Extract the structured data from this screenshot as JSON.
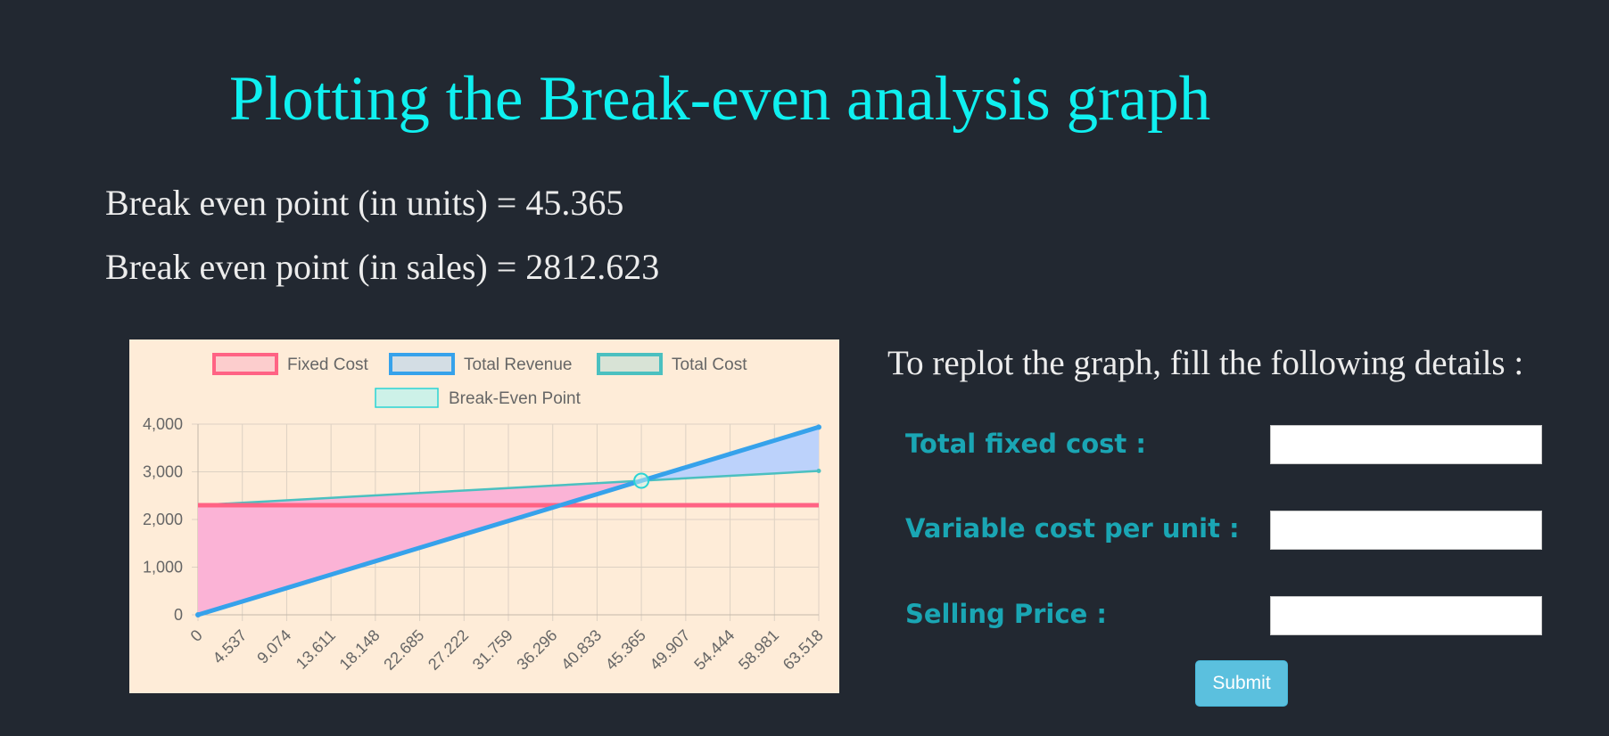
{
  "page": {
    "title": "Plotting the Break-even analysis graph",
    "result_units": "Break even point (in units) = 45.365",
    "result_sales": "Break even point (in sales) = 2812.623"
  },
  "form": {
    "heading": "To replot the graph, fill the following details :",
    "fields": [
      {
        "label": "Total fixed cost :",
        "value": ""
      },
      {
        "label": "Variable cost per unit :",
        "value": ""
      },
      {
        "label": "Selling Price :",
        "value": ""
      }
    ],
    "submit_label": "Submit"
  },
  "colors": {
    "title": "#0ff0f0",
    "label": "#1aa6b4",
    "fixed_cost": "#ff6384",
    "total_revenue": "#36a2eb",
    "total_cost": "#4bc0c0",
    "break_even": "#2ad4d4",
    "loss_fill": "#fbb3d6",
    "profit_fill": "#bcd2fb"
  },
  "chart_data": {
    "type": "line",
    "legend_position": "top",
    "grid": true,
    "x_labels": [
      "0",
      "4.537",
      "9.074",
      "13.611",
      "18.148",
      "22.685",
      "27.222",
      "31.759",
      "36.296",
      "40.833",
      "45.365",
      "49.907",
      "54.444",
      "58.981",
      "63.518"
    ],
    "x": [
      0,
      4.537,
      9.074,
      13.611,
      18.148,
      22.685,
      27.222,
      31.759,
      36.296,
      40.833,
      45.365,
      49.907,
      54.444,
      58.981,
      63.518
    ],
    "ylim": [
      0,
      4000
    ],
    "y_ticks": [
      0,
      1000,
      2000,
      3000,
      4000
    ],
    "y_tick_labels": [
      "0",
      "1,000",
      "2,000",
      "3,000",
      "4,000"
    ],
    "series": [
      {
        "name": "Fixed Cost",
        "color": "#ff6384",
        "values": [
          2300,
          2300,
          2300,
          2300,
          2300,
          2300,
          2300,
          2300,
          2300,
          2300,
          2300,
          2300,
          2300,
          2300,
          2300
        ]
      },
      {
        "name": "Total Revenue",
        "color": "#36a2eb",
        "values": [
          0,
          281,
          562,
          844,
          1125,
          1406,
          1688,
          1969,
          2250,
          2531,
          2813,
          3094,
          3375,
          3656,
          3938
        ]
      },
      {
        "name": "Total Cost",
        "color": "#4bc0c0",
        "values": [
          2300,
          2351,
          2403,
          2454,
          2505,
          2556,
          2608,
          2659,
          2710,
          2761,
          2813,
          2864,
          2915,
          2966,
          3018
        ]
      },
      {
        "name": "Break-Even Point",
        "color": "#2ad4d4",
        "points": [
          {
            "x": 45.365,
            "y": 2812.623
          }
        ]
      }
    ]
  }
}
